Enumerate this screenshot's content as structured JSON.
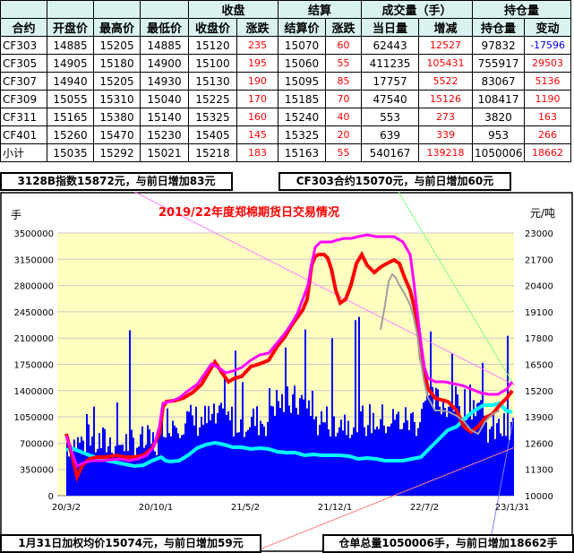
{
  "table": {
    "group_headers": {
      "close": "收盘",
      "settle": "结算",
      "volume": "成交量（手）",
      "oi": "持仓量"
    },
    "headers": {
      "contract": "合约",
      "open": "开盘价",
      "high": "最高价",
      "low": "最低价",
      "close": "收盘价",
      "close_chg": "涨跌",
      "settle": "结算价",
      "settle_chg": "涨跌",
      "volume": "当日量",
      "volume_chg": "增减",
      "oi": "持仓量",
      "oi_chg": "变动"
    },
    "rows": [
      {
        "contract": "CF303",
        "open": "14885",
        "high": "15205",
        "low": "14885",
        "close": "15120",
        "close_chg": "235",
        "settle": "15070",
        "settle_chg": "60",
        "volume": "62443",
        "volume_chg": "12527",
        "oi": "97832",
        "oi_chg": "-17596"
      },
      {
        "contract": "CF305",
        "open": "14905",
        "high": "15180",
        "low": "14900",
        "close": "15100",
        "close_chg": "195",
        "settle": "15060",
        "settle_chg": "55",
        "volume": "411235",
        "volume_chg": "105431",
        "oi": "755917",
        "oi_chg": "29503"
      },
      {
        "contract": "CF307",
        "open": "14940",
        "high": "15205",
        "low": "14930",
        "close": "15130",
        "close_chg": "190",
        "settle": "15095",
        "settle_chg": "85",
        "volume": "17757",
        "volume_chg": "5522",
        "oi": "83067",
        "oi_chg": "5136"
      },
      {
        "contract": "CF309",
        "open": "15055",
        "high": "15310",
        "low": "15040",
        "close": "15225",
        "close_chg": "170",
        "settle": "15185",
        "settle_chg": "70",
        "volume": "47540",
        "volume_chg": "15126",
        "oi": "108417",
        "oi_chg": "1190"
      },
      {
        "contract": "CF311",
        "open": "15165",
        "high": "15380",
        "low": "15140",
        "close": "15325",
        "close_chg": "160",
        "settle": "15240",
        "settle_chg": "40",
        "volume": "553",
        "volume_chg": "273",
        "oi": "3820",
        "oi_chg": "163"
      },
      {
        "contract": "CF401",
        "open": "15260",
        "high": "15470",
        "low": "15230",
        "close": "15405",
        "close_chg": "145",
        "settle": "15325",
        "settle_chg": "20",
        "volume": "639",
        "volume_chg": "339",
        "oi": "953",
        "oi_chg": "266"
      },
      {
        "contract": "小计",
        "open": "15035",
        "high": "15292",
        "low": "15021",
        "close": "15218",
        "close_chg": "183",
        "settle": "15163",
        "settle_chg": "55",
        "volume": "540167",
        "volume_chg": "139218",
        "oi": "1050006",
        "oi_chg": "18662"
      }
    ]
  },
  "notes": {
    "index": "3128B指数15872元，与前日增加83元",
    "cf303": "CF303合约15070元，与前日增加60元",
    "weighted_avg": "1月31日加权均价15074元，与前日增加59元",
    "warehouse": "仓单总量1050006手，与前日增加18662手"
  },
  "chart_data": {
    "type": "line",
    "title": "2019/22年度郑棉期货日交易情况",
    "left_unit": "手",
    "right_unit": "元/吨",
    "left_ticks": [
      "3500000",
      "3150000",
      "2800000",
      "2450000",
      "2100000",
      "1750000",
      "1400000",
      "1050000",
      "700000",
      "350000",
      "0"
    ],
    "right_ticks": [
      "23000",
      "21700",
      "20400",
      "19100",
      "17800",
      "16500",
      "15200",
      "13900",
      "12600",
      "11300",
      "10000"
    ],
    "x_ticks": [
      "20/3/2",
      "20/10/1",
      "21/5/2",
      "21/12/1",
      "22/7/2",
      "23/1/31"
    ],
    "ylim_left": [
      0,
      3500000
    ],
    "ylim_right": [
      10000,
      23000
    ],
    "series": [],
    "colors": {
      "plot_bg": "#ffffc0",
      "volume_bars": "#0000ff",
      "price": "#ff0000",
      "settle": "#ff00ff",
      "open_interest": "#00ffff",
      "contract": "#a0a0a0",
      "title": "#ff0000"
    }
  }
}
